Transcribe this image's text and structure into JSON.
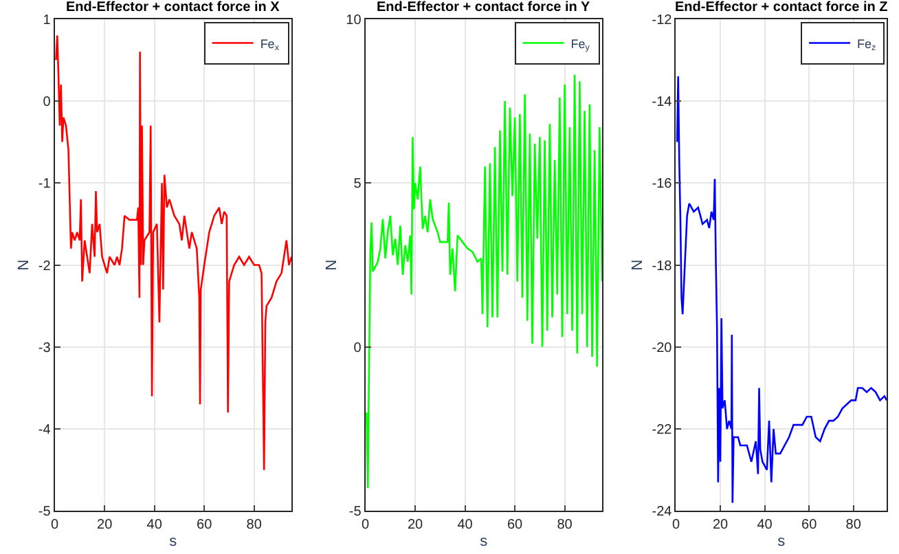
{
  "chart_data": [
    {
      "type": "line",
      "title": "End-Effector + contact force in X",
      "xlabel": "s",
      "ylabel": "N",
      "xlim": [
        0,
        95
      ],
      "xticks": [
        0,
        20,
        40,
        60,
        80
      ],
      "ylim": [
        -5,
        1
      ],
      "yticks": [
        -5,
        -4,
        -3,
        -2,
        -1,
        0,
        1
      ],
      "grid": true,
      "legend": "top right",
      "x": [
        0.5,
        1,
        1.5,
        2,
        2.5,
        3,
        3.5,
        4.5,
        5.5,
        6.5,
        7,
        8,
        9,
        10,
        10.5,
        11,
        12,
        13,
        14,
        15,
        16,
        16.5,
        17,
        18,
        19,
        20,
        21,
        22,
        24,
        25,
        26,
        27,
        28,
        30,
        33,
        33.5,
        34,
        34.2,
        34.6,
        35,
        35.5,
        36,
        38,
        38.5,
        39,
        39.5,
        41,
        42,
        43,
        43.5,
        44,
        45,
        46,
        48,
        50,
        51,
        52,
        54,
        55,
        57,
        58,
        58.3,
        58.6,
        60,
        62,
        64,
        66,
        67,
        68,
        69,
        69.5,
        70,
        71,
        72,
        74,
        76,
        78,
        80,
        82,
        83,
        84,
        84.5,
        85,
        87,
        89,
        91,
        92,
        93,
        94,
        95
      ],
      "series": [
        {
          "name": "Fe$_{x}$",
          "color": "#ff0000",
          "values": [
            0.5,
            0.8,
            0.3,
            -0.3,
            0.2,
            -0.5,
            -0.2,
            -0.3,
            -0.6,
            -1.8,
            -1.6,
            -1.7,
            -1.6,
            -1.7,
            -1.2,
            -2.2,
            -1.7,
            -1.9,
            -2.1,
            -1.5,
            -1.9,
            -1.1,
            -1.6,
            -1.5,
            -1.9,
            -2.0,
            -2.1,
            -1.9,
            -2.0,
            -1.9,
            -2.0,
            -1.8,
            -1.4,
            -1.45,
            -1.45,
            -1.3,
            -2.4,
            0.6,
            -2.0,
            -0.3,
            -2.0,
            -1.7,
            -1.6,
            -0.3,
            -3.6,
            -1.6,
            -1.5,
            -2.7,
            -1.0,
            -2.3,
            -0.9,
            -1.3,
            -1.2,
            -1.4,
            -1.5,
            -1.7,
            -1.4,
            -1.8,
            -1.6,
            -1.8,
            -2.4,
            -3.7,
            -2.3,
            -2.0,
            -1.6,
            -1.4,
            -1.3,
            -1.5,
            -1.35,
            -1.4,
            -3.8,
            -2.2,
            -2.1,
            -2.0,
            -1.9,
            -2.0,
            -1.9,
            -2.0,
            -2.0,
            -2.1,
            -4.5,
            -2.7,
            -2.5,
            -2.4,
            -2.2,
            -2.1,
            -1.9,
            -1.7,
            -2.0,
            -1.9
          ]
        }
      ]
    },
    {
      "type": "line",
      "title": "End-Effector + contact force in Y",
      "xlabel": "s",
      "ylabel": "N",
      "xlim": [
        0,
        95
      ],
      "xticks": [
        0,
        20,
        40,
        60,
        80
      ],
      "ylim": [
        -5,
        10
      ],
      "yticks": [
        -5,
        0,
        5,
        10
      ],
      "grid": true,
      "legend": "top right",
      "x": [
        0.5,
        1,
        1.5,
        2,
        2.5,
        3,
        5,
        6,
        7,
        8,
        9,
        10,
        11,
        12,
        13,
        14,
        15,
        16,
        17,
        18,
        18.5,
        19,
        19.5,
        20,
        21,
        22,
        23,
        24,
        25,
        26,
        27,
        29,
        30,
        33,
        33.5,
        34,
        35,
        36,
        37,
        39,
        41,
        43,
        45,
        46.5,
        47,
        48,
        49,
        50,
        51,
        52,
        53,
        54,
        55,
        56,
        57,
        58,
        59,
        60,
        61,
        62,
        63,
        64,
        65,
        66,
        67,
        68,
        69,
        70,
        71,
        72,
        73,
        74,
        75,
        76,
        77,
        78,
        79,
        80,
        81,
        82,
        83,
        84,
        85,
        86,
        87,
        88,
        89,
        90,
        91,
        92,
        93,
        94,
        95
      ],
      "series": [
        {
          "name": "Fe$_{y}$",
          "color": "#00ff00",
          "values": [
            -2,
            -4.3,
            -0.5,
            2.9,
            3.8,
            2.3,
            2.6,
            3.0,
            3.9,
            2.7,
            3.5,
            4.0,
            2.8,
            3.3,
            2.5,
            3.7,
            2.2,
            3.1,
            2.6,
            3.4,
            1.6,
            6.4,
            4.2,
            5.0,
            4.5,
            5.5,
            3.6,
            4.0,
            3.5,
            4.5,
            3.9,
            3.5,
            3.2,
            3.2,
            4.4,
            2.2,
            3.0,
            1.7,
            3.4,
            3.2,
            3.0,
            2.9,
            2.6,
            2.7,
            1.0,
            5.5,
            0.6,
            5.6,
            0.9,
            6.1,
            0.9,
            6.6,
            2.3,
            7.5,
            2.2,
            7.3,
            4.6,
            7.0,
            2.0,
            7.1,
            1.5,
            7.7,
            0.8,
            6.5,
            0.1,
            6.2,
            3.3,
            6.4,
            0.0,
            6.3,
            0.5,
            6.8,
            0.9,
            5.7,
            1.6,
            7.6,
            0.3,
            8.0,
            1.0,
            6.7,
            0.5,
            8.3,
            -0.2,
            8.1,
            1.0,
            7.2,
            0.0,
            7.4,
            -0.3,
            6.0,
            -0.6,
            6.7,
            2.0
          ]
        }
      ]
    },
    {
      "type": "line",
      "title": "End-Effector + contact force in Z",
      "xlabel": "s",
      "ylabel": "N",
      "xlim": [
        0,
        95
      ],
      "xticks": [
        0,
        20,
        40,
        60,
        80
      ],
      "ylim": [
        -24,
        -12
      ],
      "yticks": [
        -24,
        -22,
        -20,
        -18,
        -16,
        -14,
        -12
      ],
      "grid": true,
      "legend": "top right",
      "x": [
        0.5,
        1,
        1.5,
        2,
        2.5,
        3,
        4,
        5,
        6,
        8,
        10,
        12,
        14,
        15,
        16,
        17,
        17.5,
        18,
        18.5,
        19,
        19.5,
        20,
        20.5,
        21,
        22,
        23,
        24,
        25,
        25.2,
        25.5,
        26,
        28,
        29,
        32,
        34,
        36,
        37,
        37.5,
        38,
        39,
        41,
        42,
        43,
        44,
        45,
        47,
        49,
        51,
        53,
        55,
        57,
        59,
        61,
        63,
        65,
        67,
        69,
        71,
        73,
        75,
        77,
        79,
        81,
        82,
        84,
        86,
        88,
        90,
        92,
        94,
        95
      ],
      "series": [
        {
          "name": "Fe$_{z}$",
          "color": "#0000ff",
          "values": [
            -15,
            -13.4,
            -15.5,
            -16.9,
            -18.8,
            -19.2,
            -18,
            -16.8,
            -16.5,
            -16.7,
            -16.6,
            -17.0,
            -16.9,
            -17.1,
            -16.7,
            -16.9,
            -15.9,
            -18,
            -19.5,
            -23.3,
            -21,
            -22.8,
            -19.3,
            -21.5,
            -21.3,
            -22,
            -21.8,
            -22.0,
            -19.7,
            -23.8,
            -22.2,
            -22.2,
            -22.4,
            -22.4,
            -22.8,
            -22.3,
            -23.1,
            -21.0,
            -22.5,
            -22.8,
            -23.0,
            -21.8,
            -23.3,
            -22.0,
            -22.6,
            -22.6,
            -22.4,
            -22.2,
            -21.9,
            -21.9,
            -21.9,
            -21.7,
            -21.7,
            -22.2,
            -22.3,
            -22.0,
            -21.8,
            -21.8,
            -21.7,
            -21.5,
            -21.4,
            -21.3,
            -21.3,
            -21.0,
            -21.0,
            -21.1,
            -21.0,
            -21.1,
            -21.3,
            -21.2,
            -21.3
          ]
        }
      ]
    }
  ]
}
